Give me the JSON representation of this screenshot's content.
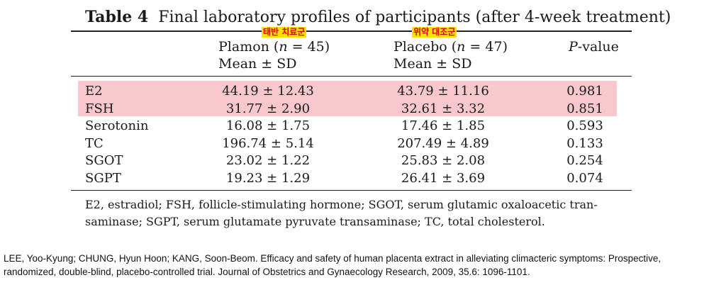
{
  "table": {
    "label": "Table 4",
    "title": "Final laboratory profiles of participants (after 4-week treatment)",
    "annotations": {
      "plamon": "태반 치료군",
      "placebo": "위약 대조군"
    },
    "columns": {
      "plamon": {
        "name": "Plamon (",
        "n_var": "n",
        "n_val": " = 45)",
        "sub": "Mean ± SD"
      },
      "placebo": {
        "name": "Placebo (",
        "n_var": "n",
        "n_val": " = 47)",
        "sub": "Mean ± SD"
      },
      "pvalue": {
        "p": "P",
        "rest": "-value"
      }
    },
    "rows": [
      {
        "name": "E2",
        "plamon": "44.19 ± 12.43",
        "placebo": "43.79 ± 11.16",
        "p": "0.981",
        "highlighted": true
      },
      {
        "name": "FSH",
        "plamon": "31.77 ± 2.90",
        "placebo": "32.61 ± 3.32",
        "p": "0.851",
        "highlighted": true
      },
      {
        "name": "Serotonin",
        "plamon": "16.08 ± 1.75",
        "placebo": "17.46 ± 1.85",
        "p": "0.593",
        "highlighted": false
      },
      {
        "name": "TC",
        "plamon": "196.74 ± 5.14",
        "placebo": "207.49 ± 4.89",
        "p": "0.133",
        "highlighted": false
      },
      {
        "name": "SGOT",
        "plamon": "23.02 ± 1.22",
        "placebo": "25.83 ± 2.08",
        "p": "0.254",
        "highlighted": false
      },
      {
        "name": "SGPT",
        "plamon": "19.23 ± 1.29",
        "placebo": "26.41 ± 3.69",
        "p": "0.074",
        "highlighted": false
      }
    ],
    "footnote": [
      "E2, estradiol; FSH, follicle-stimulating hormone; SGOT, serum glutamic oxaloacetic tran-",
      "saminase; SGPT, serum glutamate pyruvate transaminase; TC, total cholesterol."
    ],
    "highlight_color": "#f8c8cc",
    "annotation_color": "#d40000",
    "annotation_bg": "#ffe100"
  },
  "citation": [
    "LEE, Yoo-Kyung; CHUNG, Hyun Hoon; KANG, Soon-Beom. Efficacy and safety of human placenta extract in alleviating climacteric symptoms: Prospective,",
    "randomized, double-blind, placebo-controlled trial. Journal of Obstetrics and Gynaecology Research, 2009, 35.6: 1096-1101."
  ]
}
